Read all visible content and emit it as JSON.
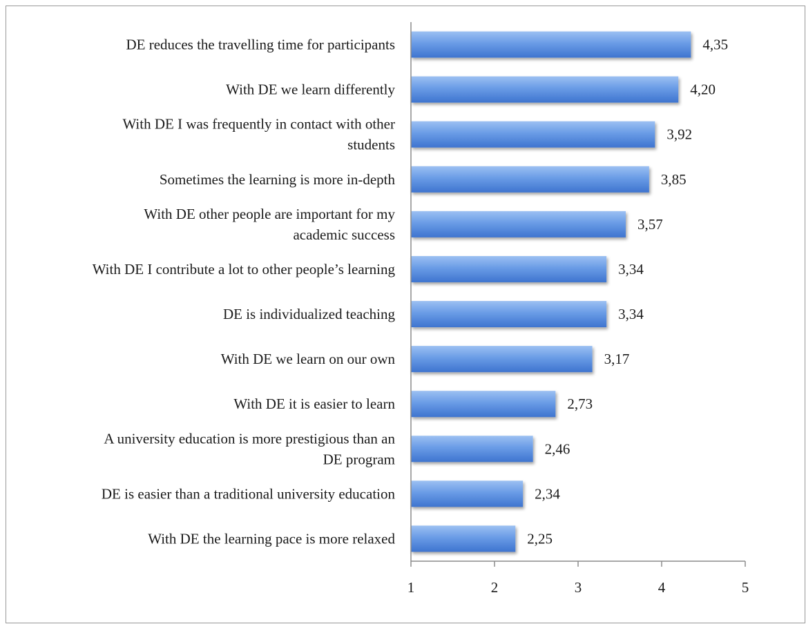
{
  "chart_data": {
    "type": "bar",
    "orientation": "horizontal",
    "title": "",
    "xlabel": "",
    "ylabel": "",
    "xlim": [
      1,
      5
    ],
    "xticks": [
      "1",
      "2",
      "3",
      "4",
      "5"
    ],
    "grid": false,
    "legend": "none",
    "bar_color": "#5b8ee0",
    "categories": [
      [
        "DE reduces the travelling time for participants"
      ],
      [
        "With DE we learn differently"
      ],
      [
        "With DE I was frequently in contact with other",
        "students"
      ],
      [
        "Sometimes the learning is more in-depth"
      ],
      [
        "With DE other people are important for my",
        "academic success"
      ],
      [
        "With DE I contribute a lot to other people’s learning"
      ],
      [
        "DE is individualized teaching"
      ],
      [
        "With DE we learn on our own"
      ],
      [
        "With DE it is easier to learn"
      ],
      [
        "A university education is more prestigious than an",
        "DE program"
      ],
      [
        "DE is easier than a traditional university education"
      ],
      [
        "With DE the learning pace is more relaxed"
      ]
    ],
    "values": [
      4.35,
      4.2,
      3.92,
      3.85,
      3.57,
      3.34,
      3.34,
      3.17,
      2.73,
      2.46,
      2.34,
      2.25
    ],
    "value_labels": [
      "4,35",
      "4,20",
      "3,92",
      "3,85",
      "3,57",
      "3,34",
      "3,34",
      "3,17",
      "2,73",
      "2,46",
      "2,34",
      "2,25"
    ]
  }
}
